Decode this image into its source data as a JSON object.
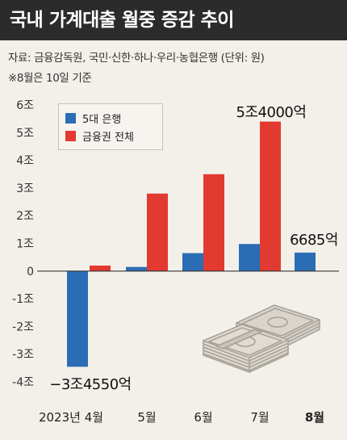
{
  "header": {
    "title": "국내 가계대출 월중 증감 추이",
    "source": "자료: 금융감독원, 국민·신한·하나·우리·농협은행  (단위: 원)",
    "note": "※8월은 10일 기준"
  },
  "colors": {
    "big5_banks": "#2a6db5",
    "all_financial_sector": "#e23a30",
    "axis": "#333333",
    "grid": "#cfcac0"
  },
  "chart_data": {
    "type": "bar",
    "categories": [
      "2023년 4월",
      "5월",
      "6월",
      "7월",
      "8월"
    ],
    "series": [
      {
        "name": "5대 은행",
        "values": [
          -3.455,
          0.15,
          0.65,
          0.98,
          0.6685
        ]
      },
      {
        "name": "금융권 전체",
        "values": [
          0.2,
          2.8,
          3.5,
          5.4,
          null
        ]
      }
    ],
    "ylim": [
      -4,
      6
    ],
    "yticks": [
      {
        "value": 6,
        "label": "6조"
      },
      {
        "value": 5,
        "label": "5조"
      },
      {
        "value": 4,
        "label": "4조"
      },
      {
        "value": 3,
        "label": "3조"
      },
      {
        "value": 2,
        "label": "2조"
      },
      {
        "value": 1,
        "label": "1조"
      },
      {
        "value": 0,
        "label": "0"
      },
      {
        "value": -1,
        "label": "-1조"
      },
      {
        "value": -2,
        "label": "-2조"
      },
      {
        "value": -3,
        "label": "-3조"
      },
      {
        "value": -4,
        "label": "-4조"
      }
    ],
    "annotations": [
      {
        "text": "−3조4550억",
        "category": 0,
        "series": 0
      },
      {
        "text": "5조4000억",
        "category": 3,
        "series": 1
      },
      {
        "text": "6685억",
        "category": 4,
        "series": 0
      }
    ],
    "legend_placement": "top-left",
    "grid": false
  }
}
